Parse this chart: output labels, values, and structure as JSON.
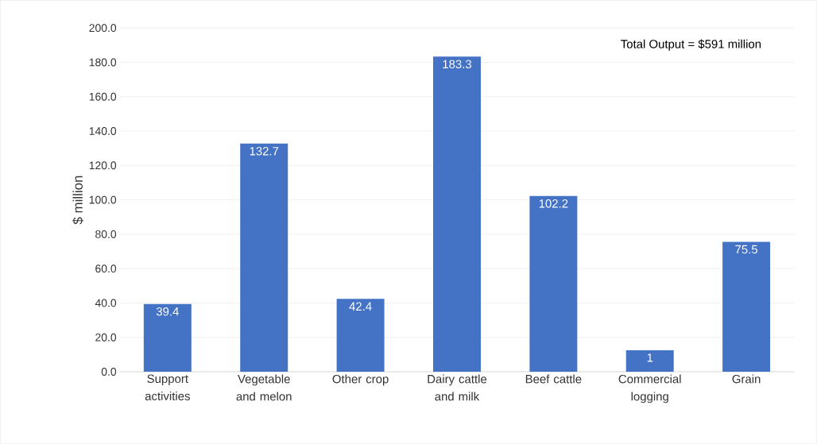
{
  "chart_data": {
    "type": "bar",
    "ylabel": "$ million",
    "categories": [
      "Support activities",
      "Vegetable and melon",
      "Other crop",
      "Dairy cattle and milk",
      "Beef cattle",
      "Commercial logging",
      "Grain"
    ],
    "values": [
      39.4,
      132.7,
      42.4,
      183.3,
      102.2,
      12.5,
      75.5
    ],
    "value_labels": [
      "39.4",
      "132.7",
      "42.4",
      "183.3",
      "102.2",
      null,
      "75.5"
    ],
    "color": "#4472c4",
    "ylim": [
      0,
      200
    ],
    "yticks": [
      {
        "value": 0,
        "label": "0.0"
      },
      {
        "value": 20,
        "label": "20.0"
      },
      {
        "value": 40,
        "label": "40.0"
      },
      {
        "value": 60,
        "label": "60.0"
      },
      {
        "value": 80,
        "label": "80.0"
      },
      {
        "value": 100,
        "label": "100.0"
      },
      {
        "value": 120,
        "label": "120.0"
      },
      {
        "value": 140,
        "label": "140.0"
      },
      {
        "value": 160,
        "label": "160.0"
      },
      {
        "value": 180,
        "label": "180.0"
      },
      {
        "value": 200,
        "label": "200.0"
      }
    ],
    "grid": "y",
    "annotations": [
      "Total Output = $591 million",
      {
        "text": "1",
        "x": "Commercial logging",
        "y": 12.5
      }
    ]
  }
}
